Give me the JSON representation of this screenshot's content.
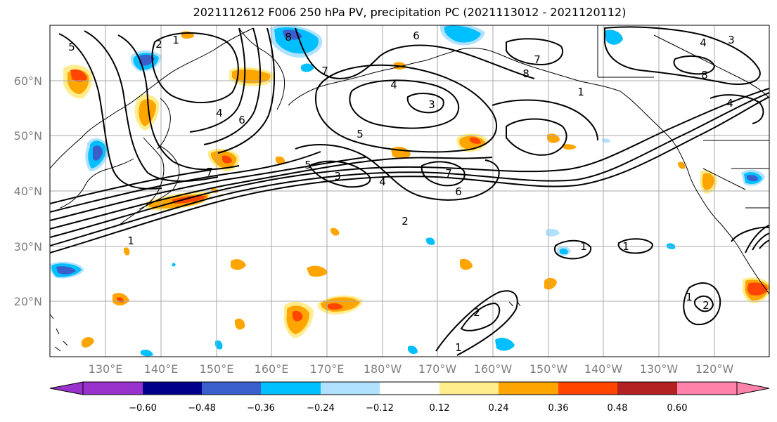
{
  "title": "2021112612 F006 250 hPa PV, precipitation PC (2021113012 - 2021120112)",
  "map": {
    "lat_labels": [
      "60°N",
      "50°N",
      "40°N",
      "30°N",
      "20°N"
    ],
    "lon_labels": [
      "130°E",
      "140°E",
      "150°E",
      "160°E",
      "170°E",
      "180°W",
      "170°W",
      "160°W",
      "150°W",
      "140°W",
      "130°W",
      "120°W"
    ],
    "contour_labels": [
      "5",
      "2",
      "1",
      "6",
      "8",
      "4",
      "7",
      "3",
      "4",
      "5",
      "6",
      "7",
      "3",
      "4",
      "5",
      "6",
      "7",
      "2",
      "1",
      "8",
      "7",
      "1",
      "4",
      "1",
      "2",
      "1",
      "1",
      "1",
      "2",
      "8",
      "4",
      "3"
    ]
  },
  "colorbar": {
    "ticks": [
      "−0.60",
      "−0.48",
      "−0.36",
      "−0.24",
      "−0.12",
      "0.12",
      "0.24",
      "0.36",
      "0.48",
      "0.60"
    ],
    "colors": [
      "#9932cc",
      "#00008b",
      "#3a5fcd",
      "#00bfff",
      "#b0e2ff",
      "#ffffff",
      "#ffec8b",
      "#ffa500",
      "#ff4500",
      "#b22222",
      "#ff82ab"
    ]
  },
  "palette": {
    "light_yellow": "#ffec8b",
    "orange": "#ffa500",
    "red_orange": "#ff4500",
    "deep_sky_blue": "#00bfff",
    "light_blue": "#b0e2ff",
    "royal_blue": "#3a5fcd",
    "gray_label": "#808080"
  }
}
